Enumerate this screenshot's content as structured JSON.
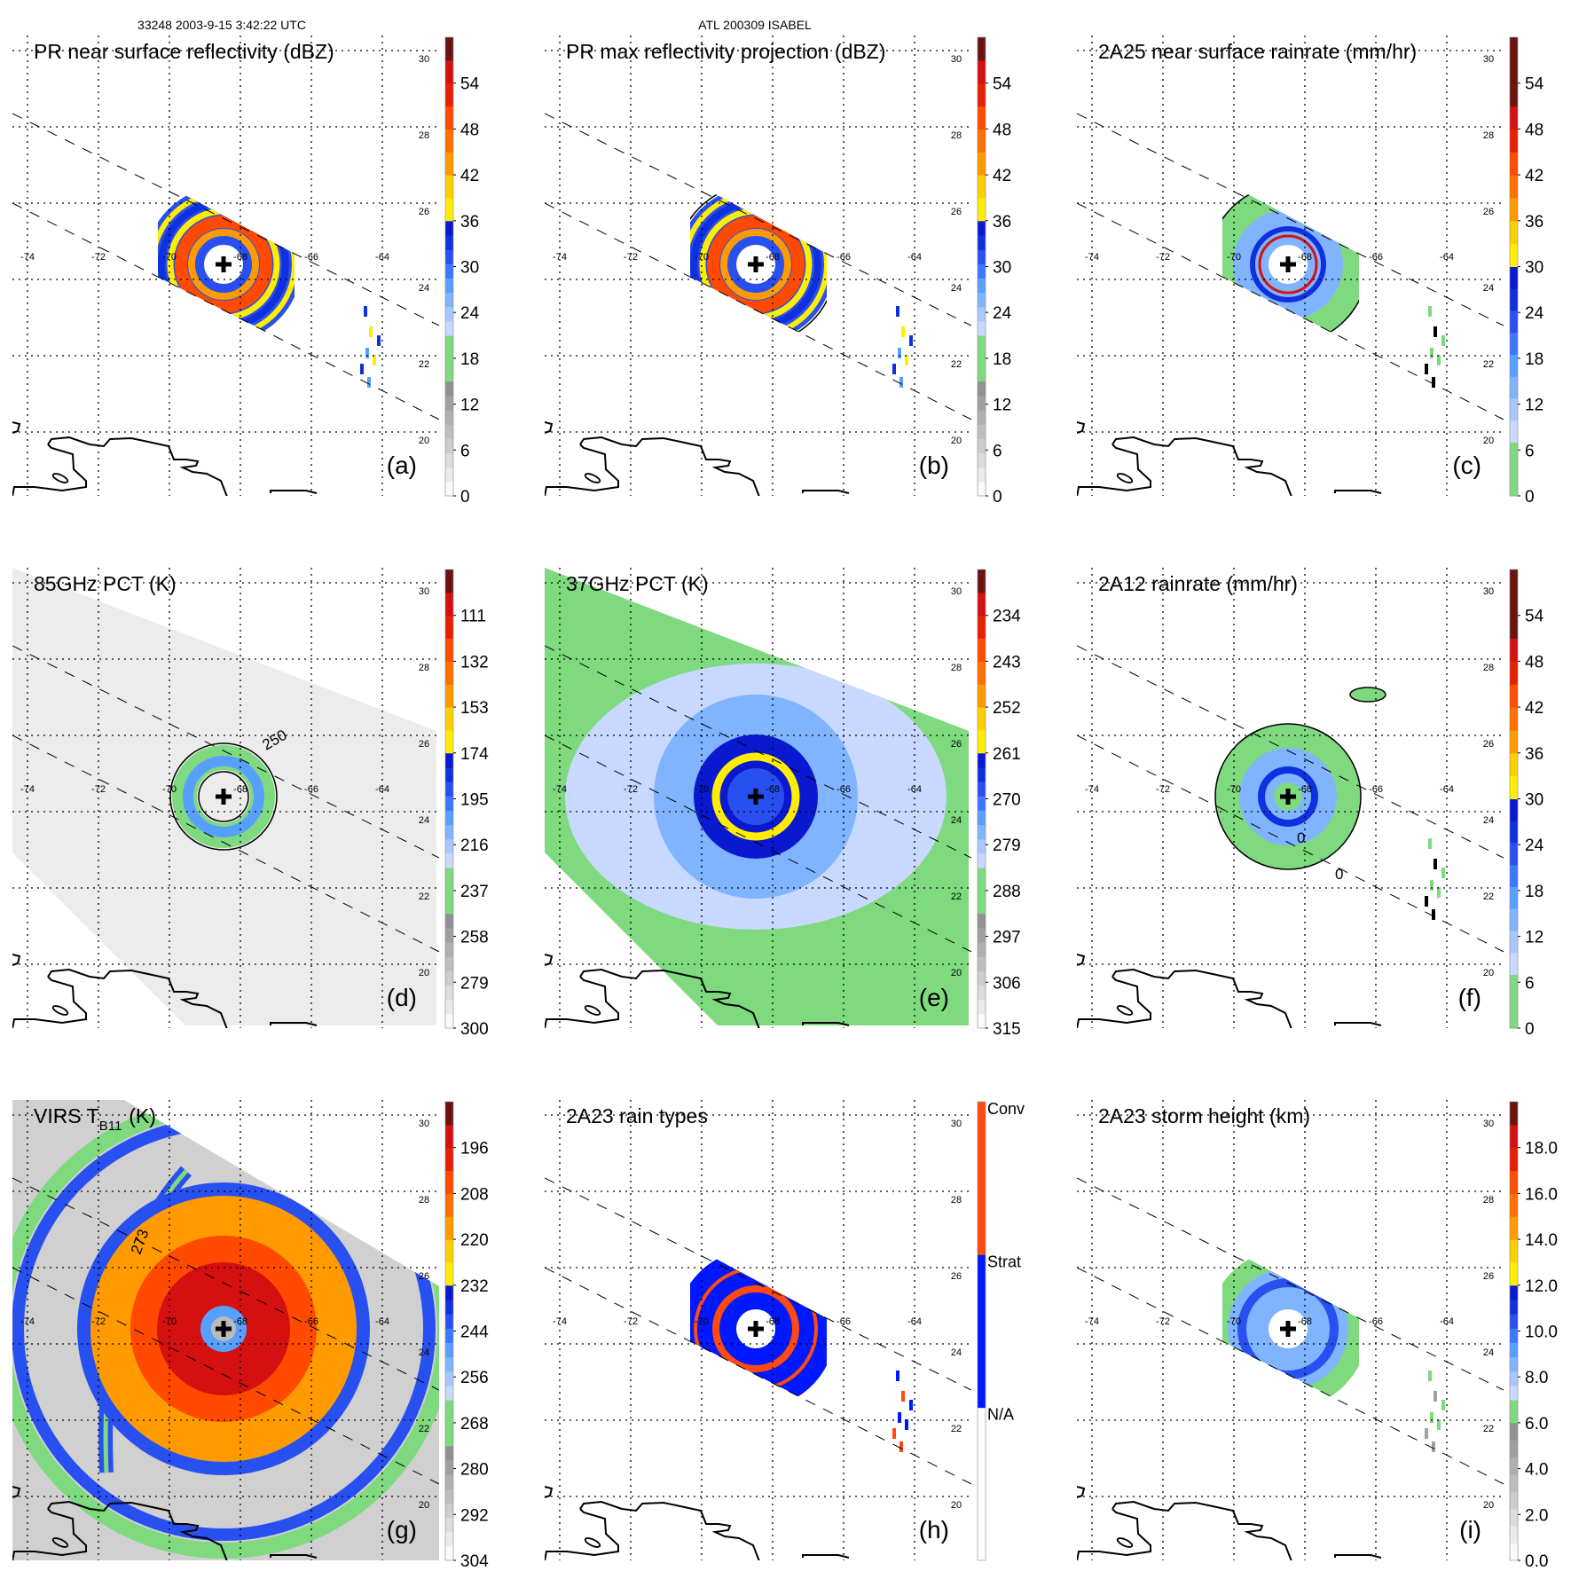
{
  "header": {
    "left": "33248 2003-9-15 3:42:22 UTC",
    "center": "ATL 200309 ISABEL"
  },
  "map": {
    "lon_labels": [
      "-74",
      "-72",
      "-70",
      "-68",
      "-66",
      "-64"
    ],
    "lat_labels": [
      "30",
      "28",
      "26",
      "24",
      "22",
      "20"
    ],
    "lons": [
      -74,
      -72,
      -70,
      -68,
      -66,
      -64
    ],
    "lats": [
      30,
      28,
      26,
      24,
      22,
      20
    ]
  },
  "panels": [
    {
      "id": "a",
      "title": "PR near surface reflectivity (dBZ)",
      "letter": "(a)",
      "scheme": "std",
      "range": [
        0,
        60
      ],
      "ticks": [
        "0",
        "6",
        "12",
        "18",
        "24",
        "30",
        "36",
        "42",
        "48",
        "54"
      ],
      "contour_labels": []
    },
    {
      "id": "b",
      "title": "PR max reflectivity projection (dBZ)",
      "letter": "(b)",
      "scheme": "std",
      "range": [
        0,
        60
      ],
      "ticks": [
        "0",
        "6",
        "12",
        "18",
        "24",
        "30",
        "36",
        "42",
        "48",
        "54"
      ],
      "contour_labels": []
    },
    {
      "id": "c",
      "title": "2A25 near surface rainrate (mm/hr)",
      "letter": "(c)",
      "scheme": "rain",
      "range": [
        0,
        60
      ],
      "ticks": [
        "0",
        "6",
        "12",
        "18",
        "24",
        "30",
        "36",
        "42",
        "48",
        "54"
      ],
      "contour_labels": []
    },
    {
      "id": "d",
      "title": "85GHz PCT (K)",
      "letter": "(d)",
      "scheme": "std",
      "range": [
        300,
        90
      ],
      "ticks": [
        "300",
        "279",
        "258",
        "237",
        "216",
        "195",
        "174",
        "153",
        "132",
        "111"
      ],
      "contour_labels": [
        "250"
      ]
    },
    {
      "id": "e",
      "title": "37GHz PCT (K)",
      "letter": "(e)",
      "scheme": "std",
      "range": [
        315,
        225
      ],
      "ticks": [
        "315",
        "306",
        "297",
        "288",
        "279",
        "270",
        "261",
        "252",
        "243",
        "234"
      ],
      "contour_labels": []
    },
    {
      "id": "f",
      "title": "2A12 rainrate (mm/hr)",
      "letter": "(f)",
      "scheme": "rain",
      "range": [
        0,
        60
      ],
      "ticks": [
        "0",
        "6",
        "12",
        "18",
        "24",
        "30",
        "36",
        "42",
        "48",
        "54"
      ],
      "contour_labels": [
        "0",
        "0"
      ]
    },
    {
      "id": "g",
      "title": "VIRS T",
      "title_sub": "B11",
      "title_unit": "(K)",
      "letter": "(g)",
      "scheme": "std",
      "range": [
        304,
        184
      ],
      "ticks": [
        "304",
        "292",
        "280",
        "268",
        "256",
        "244",
        "232",
        "220",
        "208",
        "196"
      ],
      "contour_labels": [
        "273"
      ]
    },
    {
      "id": "h",
      "title": "2A23 rain types",
      "letter": "(h)",
      "scheme": "types",
      "categories": [
        "N/A",
        "Strat",
        "Conv"
      ],
      "contour_labels": []
    },
    {
      "id": "i",
      "title": "2A23 storm height (km)",
      "letter": "(i)",
      "scheme": "height",
      "range": [
        0,
        20
      ],
      "ticks": [
        "0.0",
        "2.0",
        "4.0",
        "6.0",
        "8.0",
        "10.0",
        "12.0",
        "14.0",
        "16.0",
        "18.0"
      ],
      "contour_labels": []
    }
  ],
  "colors": {
    "green": "#7fd97f",
    "lightblue": "#a8c8ff",
    "blue": "#1030e0",
    "yellow": "#ffee00",
    "orange": "#ff9a00",
    "redorange": "#ff4a00",
    "red": "#d41010",
    "darkred": "#6a1410"
  }
}
